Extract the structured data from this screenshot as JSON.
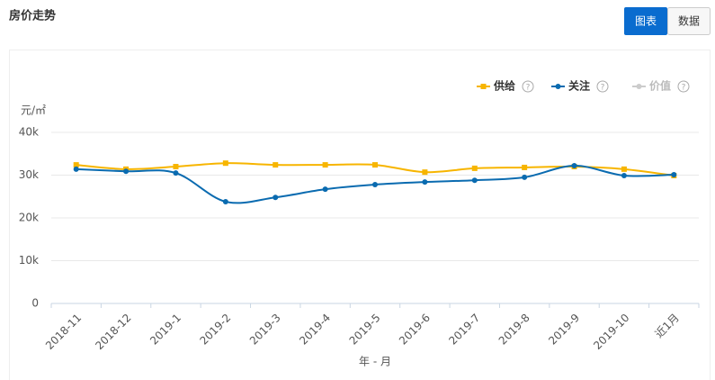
{
  "header": {
    "title": "房价走势",
    "buttons": [
      "图表",
      "数据"
    ]
  },
  "chart_data": {
    "type": "line",
    "y_label": "元/㎡",
    "x_label": "年 - 月",
    "categories": [
      "2018-11",
      "2018-12",
      "2019-1",
      "2019-2",
      "2019-3",
      "2019-4",
      "2019-5",
      "2019-6",
      "2019-7",
      "2019-8",
      "2019-9",
      "2019-10",
      "近1月"
    ],
    "series": [
      {
        "name": "供给",
        "color": "#f7b500",
        "marker": "square",
        "visible": true,
        "values": [
          32400,
          31400,
          32000,
          32800,
          32400,
          32400,
          32400,
          30700,
          31600,
          31800,
          32000,
          31400,
          29900
        ]
      },
      {
        "name": "关注",
        "color": "#0a6bb0",
        "marker": "circle",
        "visible": true,
        "values": [
          31400,
          30900,
          30500,
          23800,
          24800,
          26700,
          27800,
          28400,
          28800,
          29500,
          32200,
          29900,
          30100
        ]
      },
      {
        "name": "价值",
        "color": "#cccccc",
        "marker": "circle",
        "visible": false,
        "values": [
          null,
          null,
          null,
          null,
          null,
          null,
          null,
          null,
          null,
          null,
          null,
          null,
          null
        ]
      }
    ],
    "ylim": [
      0,
      40000
    ],
    "yticks": [
      0,
      {
        "value": 10000,
        "label": "10k"
      },
      {
        "value": 20000,
        "label": "20k"
      },
      {
        "value": 30000,
        "label": "30k"
      },
      {
        "value": 40000,
        "label": "40k"
      }
    ],
    "grid": true,
    "legend": "top-right"
  }
}
